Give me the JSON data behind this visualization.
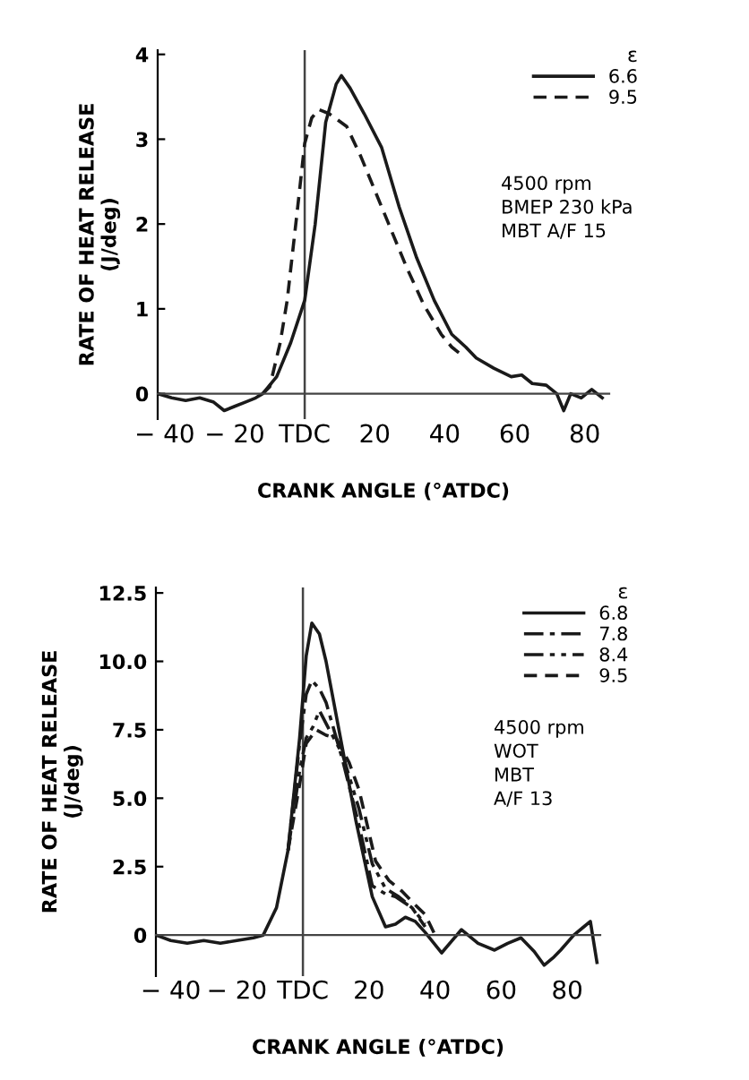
{
  "chart_data": [
    {
      "type": "line",
      "xlabel": "CRANK ANGLE (°ATDC)",
      "ylabel": "RATE OF HEAT RELEASE\n(J/deg)",
      "legend_title": "ε",
      "legend": "top right",
      "grid": false,
      "xlim": [
        -42,
        87
      ],
      "ylim": [
        -0.3,
        4.05
      ],
      "xticks": [
        {
          "value": -40,
          "label": "− 40"
        },
        {
          "value": -20,
          "label": "− 20"
        },
        {
          "value": 0,
          "label": "TDC"
        },
        20,
        40,
        60,
        80
      ],
      "yticks": [
        0,
        1,
        2,
        3,
        4
      ],
      "ref_lines": [
        {
          "axis": "x",
          "value": 0,
          "label": null
        }
      ],
      "annotations": [
        "4500 rpm",
        "BMEP 230 kPa",
        "MBT A/F 15"
      ],
      "series": [
        {
          "name": "6.6",
          "color": "#1a1a1a",
          "line_style": "solid",
          "x": [
            -42,
            -38,
            -34,
            -30,
            -26,
            -23,
            -20,
            -17,
            -14,
            -12,
            -8,
            -4,
            0,
            3,
            6,
            9,
            10.5,
            13,
            17,
            22,
            27,
            32,
            37,
            42,
            46,
            49,
            54,
            59,
            62,
            65,
            69,
            72,
            74,
            76,
            79,
            82,
            85
          ],
          "values": [
            0,
            -0.05,
            -0.08,
            -0.05,
            -0.1,
            -0.2,
            -0.15,
            -0.1,
            -0.05,
            0,
            0.2,
            0.6,
            1.1,
            2.0,
            3.2,
            3.65,
            3.75,
            3.6,
            3.3,
            2.9,
            2.2,
            1.6,
            1.1,
            0.7,
            0.55,
            0.42,
            0.3,
            0.2,
            0.22,
            0.12,
            0.1,
            0.0,
            -0.2,
            0.0,
            -0.05,
            0.05,
            -0.05
          ]
        },
        {
          "name": "9.5",
          "color": "#1a1a1a",
          "line_style": "dashed",
          "x": [
            -12,
            -10,
            -7,
            -5,
            -2,
            0,
            2,
            4,
            7,
            12,
            16,
            19,
            24,
            29,
            34,
            39,
            42,
            45
          ],
          "values": [
            0,
            0.08,
            0.6,
            1.1,
            2.2,
            2.95,
            3.25,
            3.35,
            3.3,
            3.15,
            2.8,
            2.5,
            2.0,
            1.5,
            1.05,
            0.7,
            0.55,
            0.45
          ]
        }
      ]
    },
    {
      "type": "line",
      "xlabel": "CRANK ANGLE (°ATDC)",
      "ylabel": "RATE OF HEAT RELEASE\n(J/deg)",
      "legend_title": "ε",
      "legend": "top right",
      "grid": false,
      "xlim": [
        -44.5,
        90
      ],
      "ylim": [
        -1.5,
        12.7
      ],
      "xticks": [
        {
          "value": -40,
          "label": "− 40"
        },
        {
          "value": -20,
          "label": "− 20"
        },
        {
          "value": 0,
          "label": "TDC"
        },
        20,
        40,
        60,
        80
      ],
      "yticks": [
        0,
        {
          "value": 2.5,
          "label": "2.5"
        },
        {
          "value": 5,
          "label": "5.0"
        },
        {
          "value": 7.5,
          "label": "7.5"
        },
        {
          "value": 10,
          "label": "10.0"
        },
        {
          "value": 12.5,
          "label": "12.5"
        }
      ],
      "ref_lines": [
        {
          "axis": "x",
          "value": 0,
          "label": null
        }
      ],
      "annotations": [
        "4500 rpm",
        "WOT",
        "MBT",
        "A/F 13"
      ],
      "series": [
        {
          "name": "6.8",
          "color": "#1a1a1a",
          "line_style": "solid",
          "x": [
            -44.5,
            -40,
            -35,
            -30,
            -25,
            -20,
            -15,
            -12,
            -8,
            -4.5,
            -1,
            1,
            2.7,
            5,
            7,
            12,
            16,
            21,
            25,
            28,
            31,
            34,
            37,
            42,
            48,
            53,
            58,
            62,
            66,
            70,
            73,
            76,
            78,
            82,
            85,
            87,
            89
          ],
          "values": [
            0,
            -0.2,
            -0.3,
            -0.2,
            -0.3,
            -0.2,
            -0.1,
            0,
            1.0,
            3.1,
            7.2,
            10.2,
            11.4,
            11.0,
            10.0,
            6.8,
            4.2,
            1.4,
            0.3,
            0.4,
            0.65,
            0.5,
            0.1,
            -0.65,
            0.2,
            -0.3,
            -0.55,
            -0.3,
            -0.1,
            -0.6,
            -1.1,
            -0.8,
            -0.55,
            0.0,
            0.3,
            0.5,
            -1.0
          ]
        },
        {
          "name": "7.8",
          "color": "#1a1a1a",
          "line_style": "dashdot",
          "x": [
            -4.5,
            -1,
            1,
            2.7,
            5,
            7,
            12,
            17,
            21,
            25,
            28,
            33,
            37
          ],
          "values": [
            3.1,
            7.0,
            8.8,
            9.3,
            9.0,
            8.5,
            6.4,
            4.0,
            1.8,
            1.5,
            1.4,
            1.0,
            0.3
          ]
        },
        {
          "name": "8.4",
          "color": "#1a1a1a",
          "line_style": "dashdotdot",
          "x": [
            -4.5,
            -1,
            1,
            3,
            5,
            8,
            12,
            17,
            21,
            25,
            29,
            33,
            37
          ],
          "values": [
            3.1,
            6.0,
            7.2,
            7.6,
            8.2,
            7.5,
            6.6,
            4.6,
            2.6,
            1.7,
            1.4,
            1.0,
            0.4
          ]
        },
        {
          "name": "9.5",
          "color": "#1a1a1a",
          "line_style": "dashed",
          "x": [
            -4.5,
            -1,
            1,
            4,
            7,
            10,
            14,
            17,
            22,
            26,
            30,
            34,
            37,
            40
          ],
          "values": [
            3.1,
            5.5,
            7.0,
            7.5,
            7.3,
            7.2,
            6.3,
            5.3,
            2.7,
            2.0,
            1.6,
            1.1,
            0.75,
            0.0
          ]
        }
      ]
    }
  ]
}
